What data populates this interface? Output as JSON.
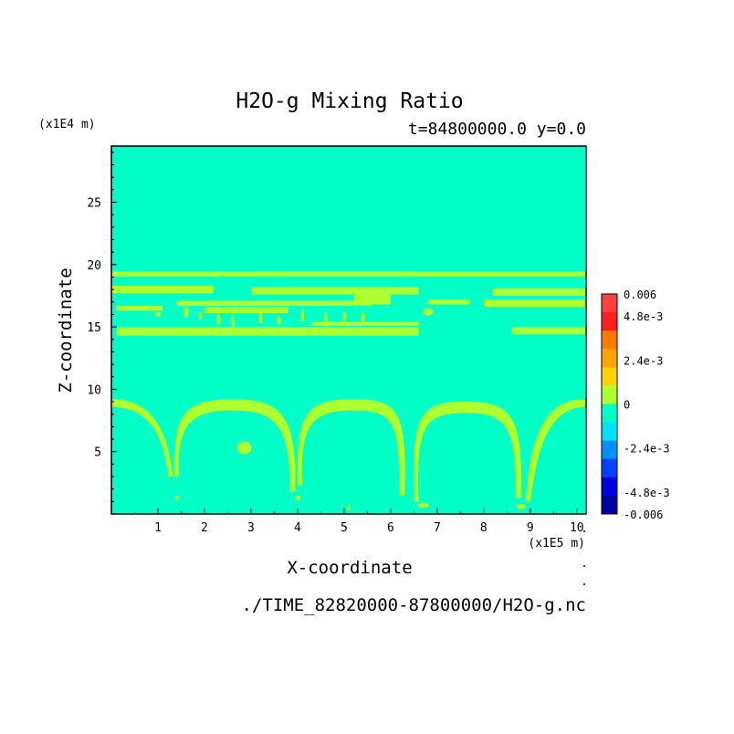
{
  "chart_data": {
    "type": "heatmap",
    "title": "H2O-g Mixing Ratio",
    "subtitle": "t=84800000.0 y=0.0",
    "xlabel": "X-coordinate",
    "ylabel": "Z-coordinate",
    "x_unit_label": "(x1E5 m)",
    "y_unit_label": "(x1E4 m)",
    "xlim": [
      0,
      10.2
    ],
    "ylim": [
      0,
      29.5
    ],
    "x_ticks": [
      "1",
      "2",
      "3",
      "4",
      "5",
      "6",
      "7",
      "8",
      "9",
      "10"
    ],
    "y_ticks": [
      "5",
      "10",
      "15",
      "20",
      "25"
    ],
    "background_value": 0,
    "colorbar": {
      "range": [
        -0.006,
        0.006
      ],
      "tick_labels": [
        "0.006",
        "4.8e-3",
        "2.4e-3",
        "0",
        "-2.4e-3",
        "-4.8e-3",
        "-0.006"
      ],
      "tick_values": [
        0.006,
        0.0048,
        0.0024,
        0,
        -0.0024,
        -0.0048,
        -0.006
      ],
      "colors_top_to_bottom": [
        "#ff4040",
        "#ff1f1f",
        "#ff7b00",
        "#ffa500",
        "#ffd100",
        "#adff2f",
        "#00ffc6",
        "#00e0ff",
        "#0090ff",
        "#0040ff",
        "#0000e0",
        "#00009e"
      ]
    },
    "features": [
      {
        "name": "upper band",
        "value": 0.0006,
        "z_range": [
          14.5,
          19.5
        ]
      },
      {
        "name": "arches",
        "value": 0.0006,
        "z_range": [
          0,
          9.2
        ]
      }
    ]
  },
  "footer": {
    "file_path": "./TIME_82820000-87800000/H2O-g.nc"
  },
  "colors": {
    "background_field": "#00ffc6",
    "positive_feature": "#adff2f"
  }
}
